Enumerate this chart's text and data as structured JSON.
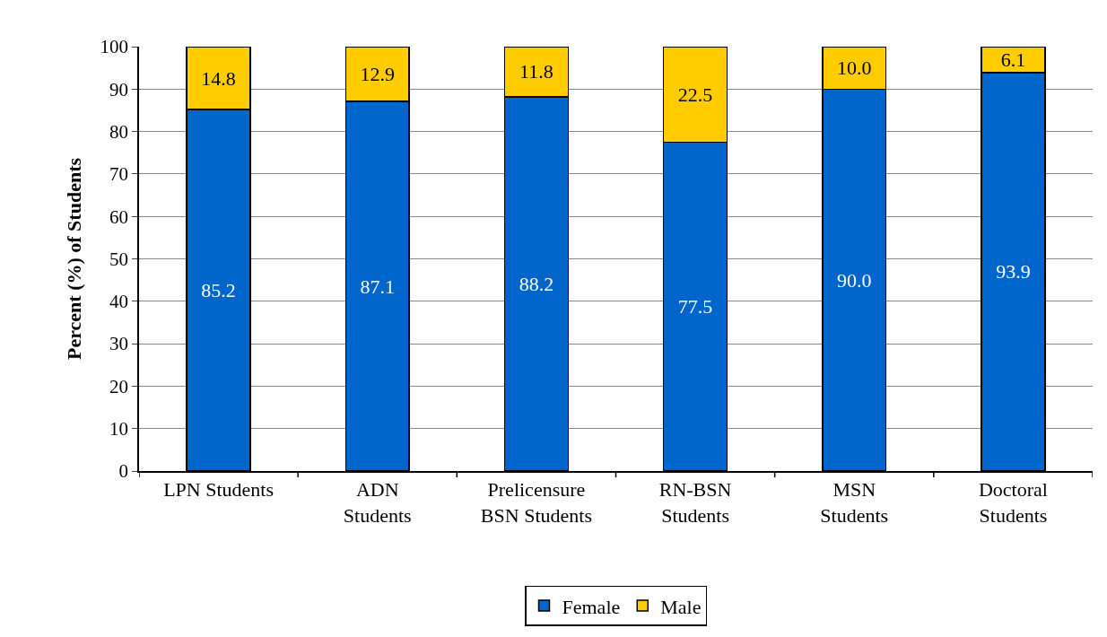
{
  "chart_data": {
    "type": "bar",
    "stacked": true,
    "ylabel": "Percent (%) of Students",
    "categories": [
      "LPN Students",
      "ADN\nStudents",
      "Prelicensure\nBSN Students",
      "RN-BSN\nStudents",
      "MSN\nStudents",
      "Doctoral\nStudents"
    ],
    "series": [
      {
        "name": "Female",
        "color": "#0066cc",
        "values": [
          85.2,
          87.1,
          88.2,
          77.5,
          90.0,
          93.9
        ],
        "value_labels": [
          "85.2",
          "87.1",
          "88.2",
          "77.5",
          "90.0",
          "93.9"
        ]
      },
      {
        "name": "Male",
        "color": "#ffcc00",
        "values": [
          14.8,
          12.9,
          11.8,
          22.5,
          10.0,
          6.1
        ],
        "value_labels": [
          "14.8",
          "12.9",
          "11.8",
          "22.5",
          "10.0",
          "6.1"
        ]
      }
    ],
    "ylim": [
      0,
      100
    ],
    "yticks": [
      0,
      10,
      20,
      30,
      40,
      50,
      60,
      70,
      80,
      90,
      100
    ],
    "grid": "y",
    "legend": "bottom"
  }
}
